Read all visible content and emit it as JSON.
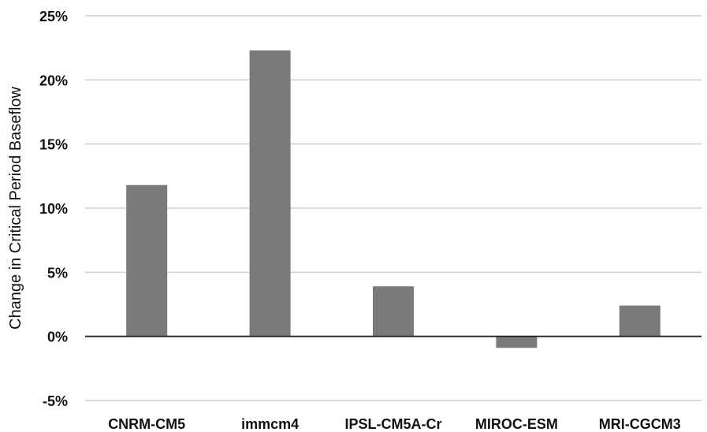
{
  "chart_data": {
    "type": "bar",
    "title": "",
    "xlabel": "",
    "ylabel": "Change in Critical Period Baseflow",
    "categories": [
      "CNRM-CM5",
      "immcm4",
      "IPSL-CM5A-Cr",
      "MIROC-ESM",
      "MRI-CGCM3"
    ],
    "values": [
      11.8,
      22.3,
      3.9,
      -0.9,
      2.4
    ],
    "value_unit": "%",
    "ylim": [
      -5,
      25
    ],
    "yticks": [
      -5,
      0,
      5,
      10,
      15,
      20,
      25
    ],
    "ytick_labels": [
      "-5%",
      "0%",
      "5%",
      "10%",
      "15%",
      "20%",
      "25%"
    ],
    "grid": true,
    "legend": "none",
    "colors": {
      "bar": "#7a7a7a",
      "grid": "#cfcfcf",
      "zero_line": "#222222",
      "text": "#111111"
    }
  }
}
